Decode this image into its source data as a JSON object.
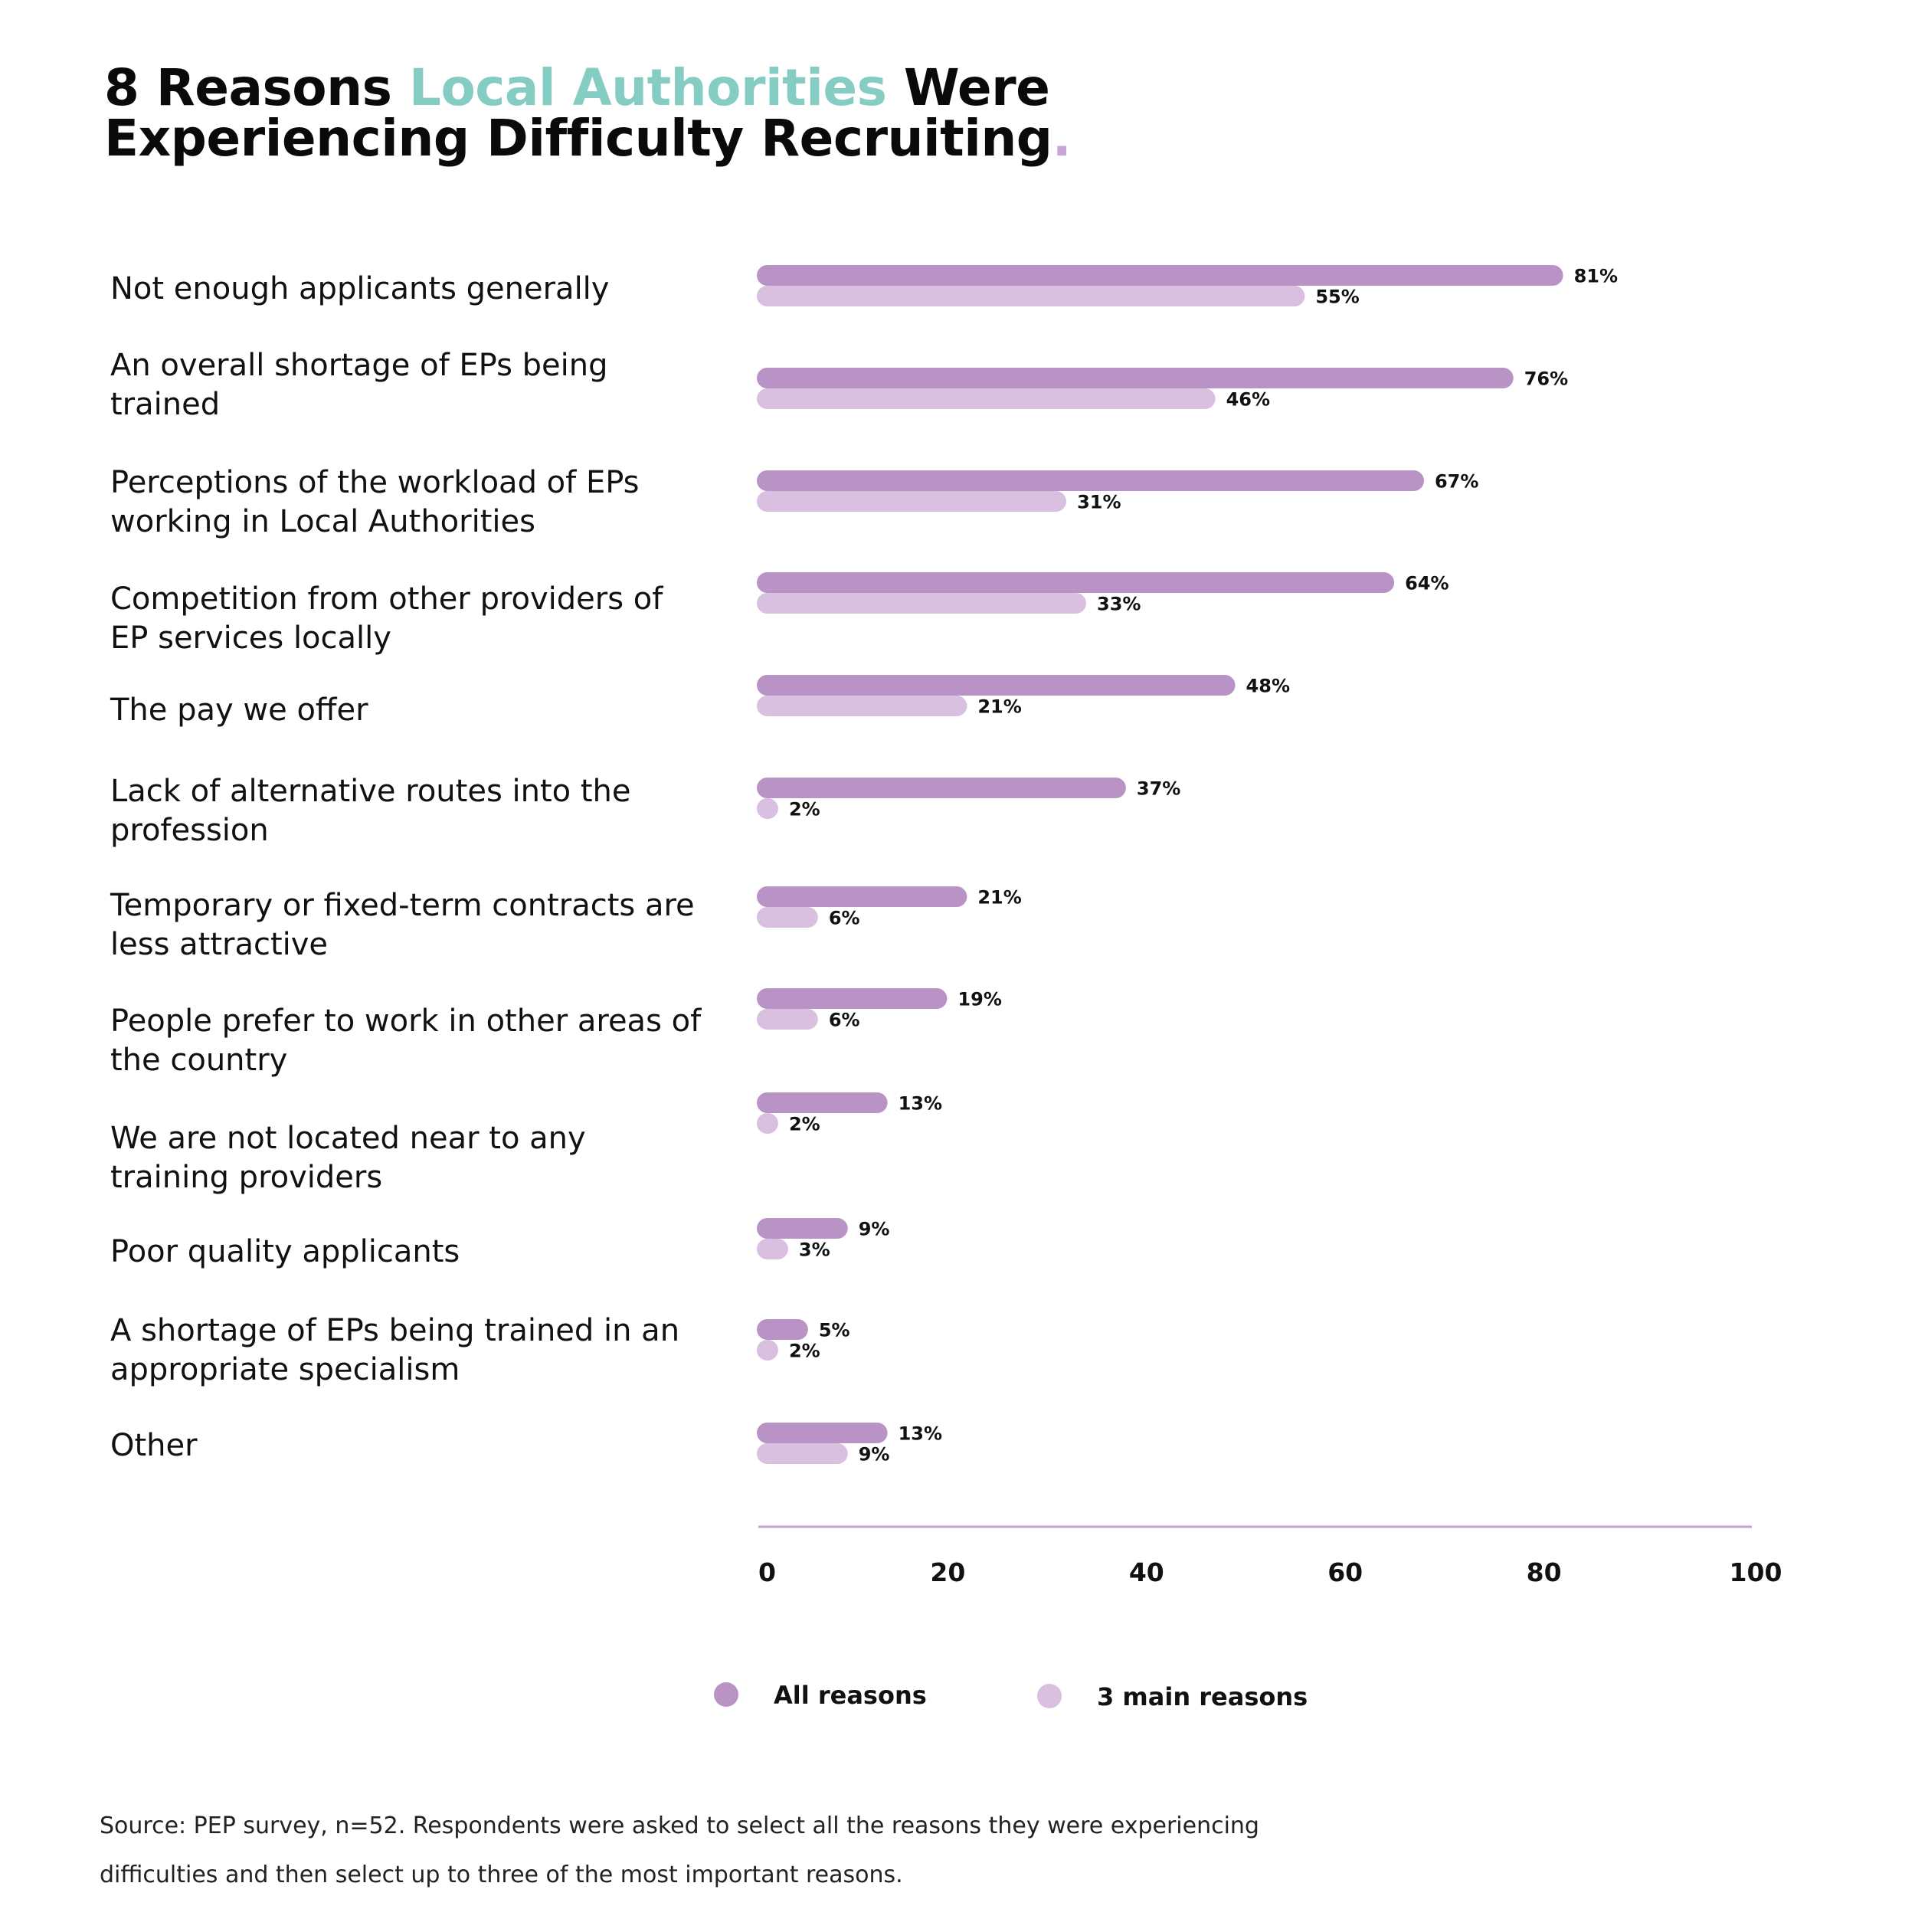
{
  "title": {
    "part1": "8 Reasons ",
    "accent": "Local Authorities",
    "part2": " Were",
    "line2": "Experiencing Difficulty Recruiting",
    "dot": "."
  },
  "colors": {
    "accent": "#85cdc3",
    "all_reasons": "#b993c6",
    "main_reasons": "#d9c0e0",
    "axis": "#c2a3d2",
    "dot": "#c5a6d6"
  },
  "chart_data": {
    "type": "bar",
    "orientation": "horizontal",
    "title": "8 Reasons Local Authorities Were Experiencing Difficulty Recruiting.",
    "categories": [
      [
        "Not enough applicants generally"
      ],
      [
        "An overall shortage of EPs being",
        "trained"
      ],
      [
        "Perceptions of the workload of EPs",
        "working in Local Authorities"
      ],
      [
        "Competition from other providers of",
        "EP services locally"
      ],
      [
        "The pay we offer"
      ],
      [
        "Lack of alternative routes into the",
        "profession"
      ],
      [
        "Temporary or fixed-term contracts are",
        "less attractive"
      ],
      [
        "People prefer to work in other areas of",
        "the country"
      ],
      [
        "We are not located near to any",
        "training providers"
      ],
      [
        "Poor quality applicants"
      ],
      [
        "A shortage of EPs being trained in an",
        "appropriate specialism"
      ],
      [
        "Other"
      ]
    ],
    "series": [
      {
        "name": "All reasons",
        "values": [
          81,
          76,
          67,
          64,
          48,
          37,
          21,
          19,
          13,
          9,
          5,
          13
        ],
        "labels": [
          "81%",
          "76%",
          "67%",
          "64%",
          "48%",
          "37%",
          "21%",
          "19%",
          "13%",
          "9%",
          "5%",
          "13%"
        ]
      },
      {
        "name": "3 main reasons",
        "values": [
          55,
          46,
          31,
          33,
          21,
          2,
          6,
          6,
          2,
          3,
          2,
          9
        ],
        "labels": [
          "55%",
          "46%",
          "31%",
          "33%",
          "21%",
          "2%",
          "6%",
          "6%",
          "2%",
          "3%",
          "2%",
          "9%"
        ]
      }
    ],
    "x_ticks": [
      "0",
      "20",
      "40",
      "60",
      "80",
      "100"
    ],
    "xlim": [
      0,
      100
    ],
    "grid": false,
    "legend_position": "bottom-center"
  },
  "source": {
    "line1": "Source: PEP survey, n=52. Respondents were asked to select all the reasons they were experiencing",
    "line2": "difficulties and then select up to three of the most important reasons."
  }
}
